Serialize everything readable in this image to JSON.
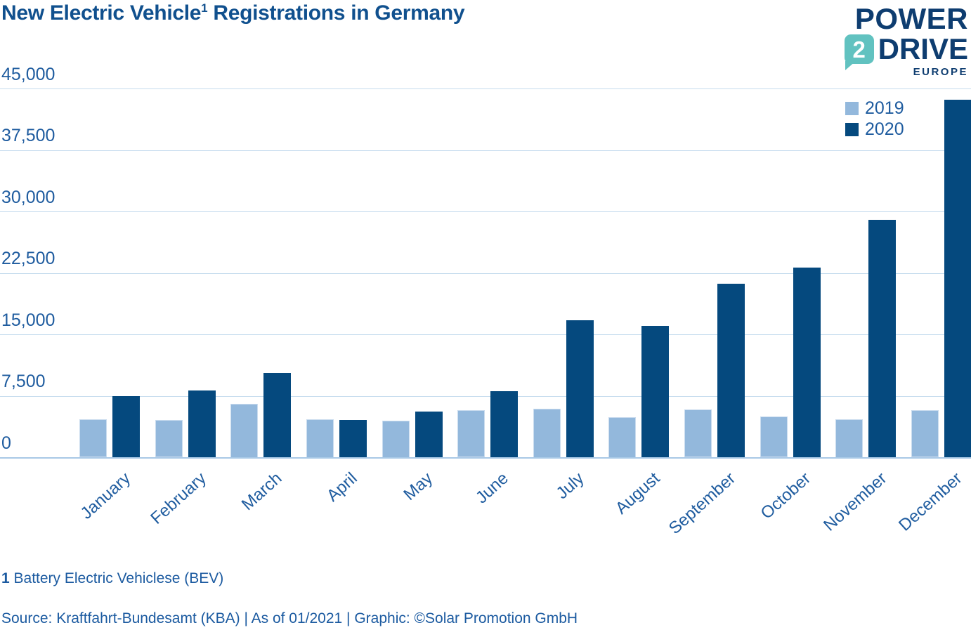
{
  "title": {
    "text": "New Electric Vehicle",
    "footnote_marker": "1",
    "text_after": " Registrations in Germany"
  },
  "logo": {
    "word1": "POWER",
    "badge": "2",
    "word2": "DRIVE",
    "word3": "EUROPE"
  },
  "chart_data": {
    "type": "bar",
    "title": "New Electric Vehicle¹ Registrations in Germany",
    "categories": [
      "January",
      "February",
      "March",
      "April",
      "May",
      "June",
      "July",
      "August",
      "September",
      "October",
      "November",
      "December"
    ],
    "series": [
      {
        "name": "2019",
        "color": "#93b8dc",
        "values": [
          4700,
          4600,
          6600,
          4650,
          4500,
          5800,
          6000,
          4950,
          5900,
          5050,
          4650,
          5750
        ]
      },
      {
        "name": "2020",
        "color": "#05497e",
        "values": [
          7500,
          8200,
          10300,
          4600,
          5600,
          8100,
          16800,
          16100,
          21200,
          23200,
          29000,
          43700
        ]
      }
    ],
    "xlabel": "",
    "ylabel": "",
    "ylim": [
      0,
      45000
    ],
    "yticks": [
      0,
      7500,
      15000,
      22500,
      30000,
      37500,
      45000
    ],
    "ytick_labels": [
      "0",
      "7,500",
      "15,000",
      "22,500",
      "30,000",
      "37,500",
      "45,000"
    ],
    "grid": true,
    "legend_position": "top-right"
  },
  "footnote": {
    "marker": "1",
    "text": " Battery Electric Vehiclese (BEV)"
  },
  "source_line": "Source: Kraftfahrt-Bundesamt (KBA) | As of 01/2021 | Graphic: ©Solar Promotion GmbH",
  "colors": {
    "bar_2019": "#93b8dc",
    "bar_2020": "#05497e",
    "logo_teal": "#61c2c0",
    "logo_navy": "#0e3d70",
    "title_blue": "#10508e",
    "axis_text": "#1f5c9f",
    "gridline": "#c6dcee",
    "baseline": "#a9c9e6"
  }
}
